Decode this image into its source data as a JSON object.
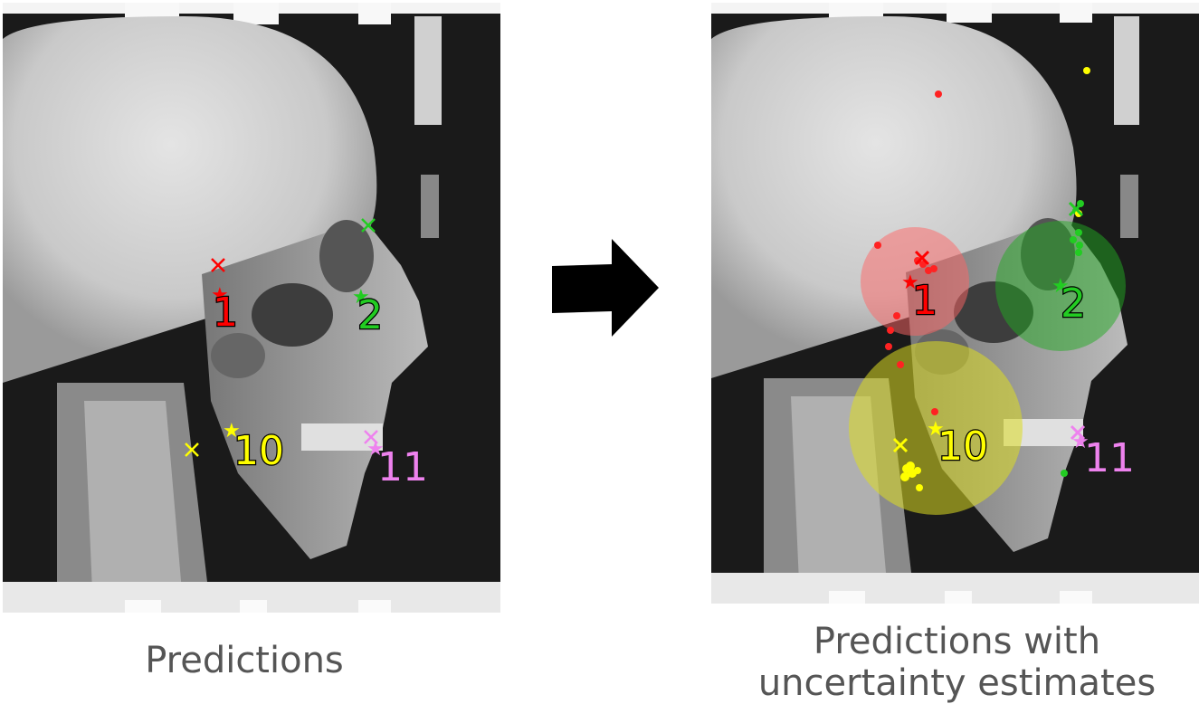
{
  "left_panel": {
    "caption": "Predictions",
    "landmarks": [
      {
        "id": "1",
        "label": "1",
        "color": "#ff0000"
      },
      {
        "id": "2",
        "label": "2",
        "color": "#22cc22"
      },
      {
        "id": "10",
        "label": "10",
        "color": "#ffff00"
      },
      {
        "id": "11",
        "label": "11",
        "color": "#ee82ee"
      }
    ]
  },
  "right_panel": {
    "caption_line1": "Predictions with",
    "caption_line2": "uncertainty estimates",
    "landmarks": [
      {
        "id": "1",
        "label": "1",
        "color": "#ff0000"
      },
      {
        "id": "2",
        "label": "2",
        "color": "#22cc22"
      },
      {
        "id": "10",
        "label": "10",
        "color": "#ffff00"
      },
      {
        "id": "11",
        "label": "11",
        "color": "#ee82ee"
      }
    ]
  },
  "arrow": {
    "icon": "right-arrow-icon",
    "color": "#000000"
  }
}
